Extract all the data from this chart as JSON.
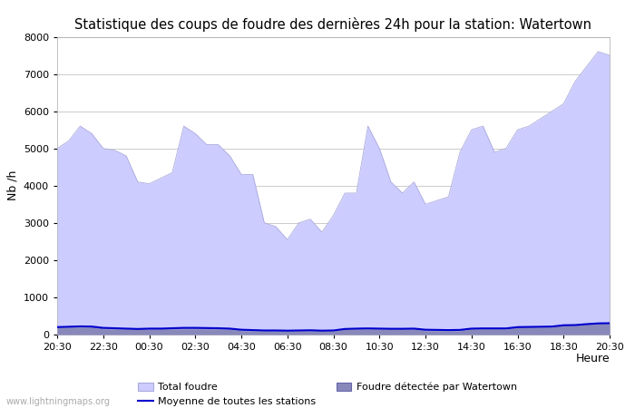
{
  "title": "Statistique des coups de foudre des dernières 24h pour la station: Watertown",
  "ylabel": "Nb /h",
  "xlabel_right": "Heure",
  "watermark": "www.lightningmaps.org",
  "ylim": [
    0,
    8000
  ],
  "yticks": [
    0,
    1000,
    2000,
    3000,
    4000,
    5000,
    6000,
    7000,
    8000
  ],
  "xtick_labels": [
    "20:30",
    "22:30",
    "00:30",
    "02:30",
    "04:30",
    "06:30",
    "08:30",
    "10:30",
    "12:30",
    "14:30",
    "16:30",
    "18:30",
    "20:30"
  ],
  "legend_labels": [
    "Total foudre",
    "Moyenne de toutes les stations",
    "Foudre détectée par Watertown"
  ],
  "total_foudre_color": "#ccccff",
  "total_foudre_edge": "#aaaadd",
  "watertown_color": "#8888bb",
  "watertown_edge": "#6666aa",
  "moyenne_color": "#0000cc",
  "background_color": "#ffffff",
  "grid_color": "#cccccc",
  "title_fontsize": 10.5,
  "axis_fontsize": 9,
  "tick_fontsize": 8,
  "n_points": 49,
  "total_foudre": [
    5000,
    5200,
    5600,
    5400,
    5000,
    4950,
    4800,
    4100,
    4050,
    4200,
    4350,
    5600,
    5400,
    5100,
    5100,
    4800,
    4300,
    4300,
    3000,
    2900,
    2550,
    3000,
    3100,
    2750,
    3200,
    3800,
    3800,
    5600,
    5000,
    4100,
    3800,
    4100,
    3500,
    3600,
    3700,
    4900,
    5500,
    5600,
    4900,
    5000,
    5500,
    5600,
    5800,
    6000,
    6200,
    6800,
    7200,
    7600,
    7500
  ],
  "watertown": [
    200,
    200,
    200,
    200,
    150,
    150,
    150,
    150,
    150,
    150,
    150,
    150,
    150,
    150,
    150,
    150,
    100,
    100,
    100,
    100,
    100,
    100,
    100,
    100,
    100,
    150,
    150,
    150,
    150,
    150,
    150,
    150,
    100,
    100,
    100,
    100,
    150,
    150,
    150,
    150,
    200,
    200,
    200,
    200,
    250,
    250,
    280,
    300,
    300
  ],
  "moyenne": [
    200,
    210,
    220,
    215,
    180,
    170,
    160,
    150,
    160,
    160,
    170,
    180,
    180,
    175,
    170,
    160,
    130,
    120,
    110,
    110,
    105,
    110,
    115,
    105,
    110,
    150,
    160,
    165,
    160,
    155,
    155,
    160,
    130,
    125,
    120,
    125,
    160,
    165,
    165,
    165,
    200,
    205,
    210,
    215,
    250,
    255,
    280,
    300,
    305
  ]
}
